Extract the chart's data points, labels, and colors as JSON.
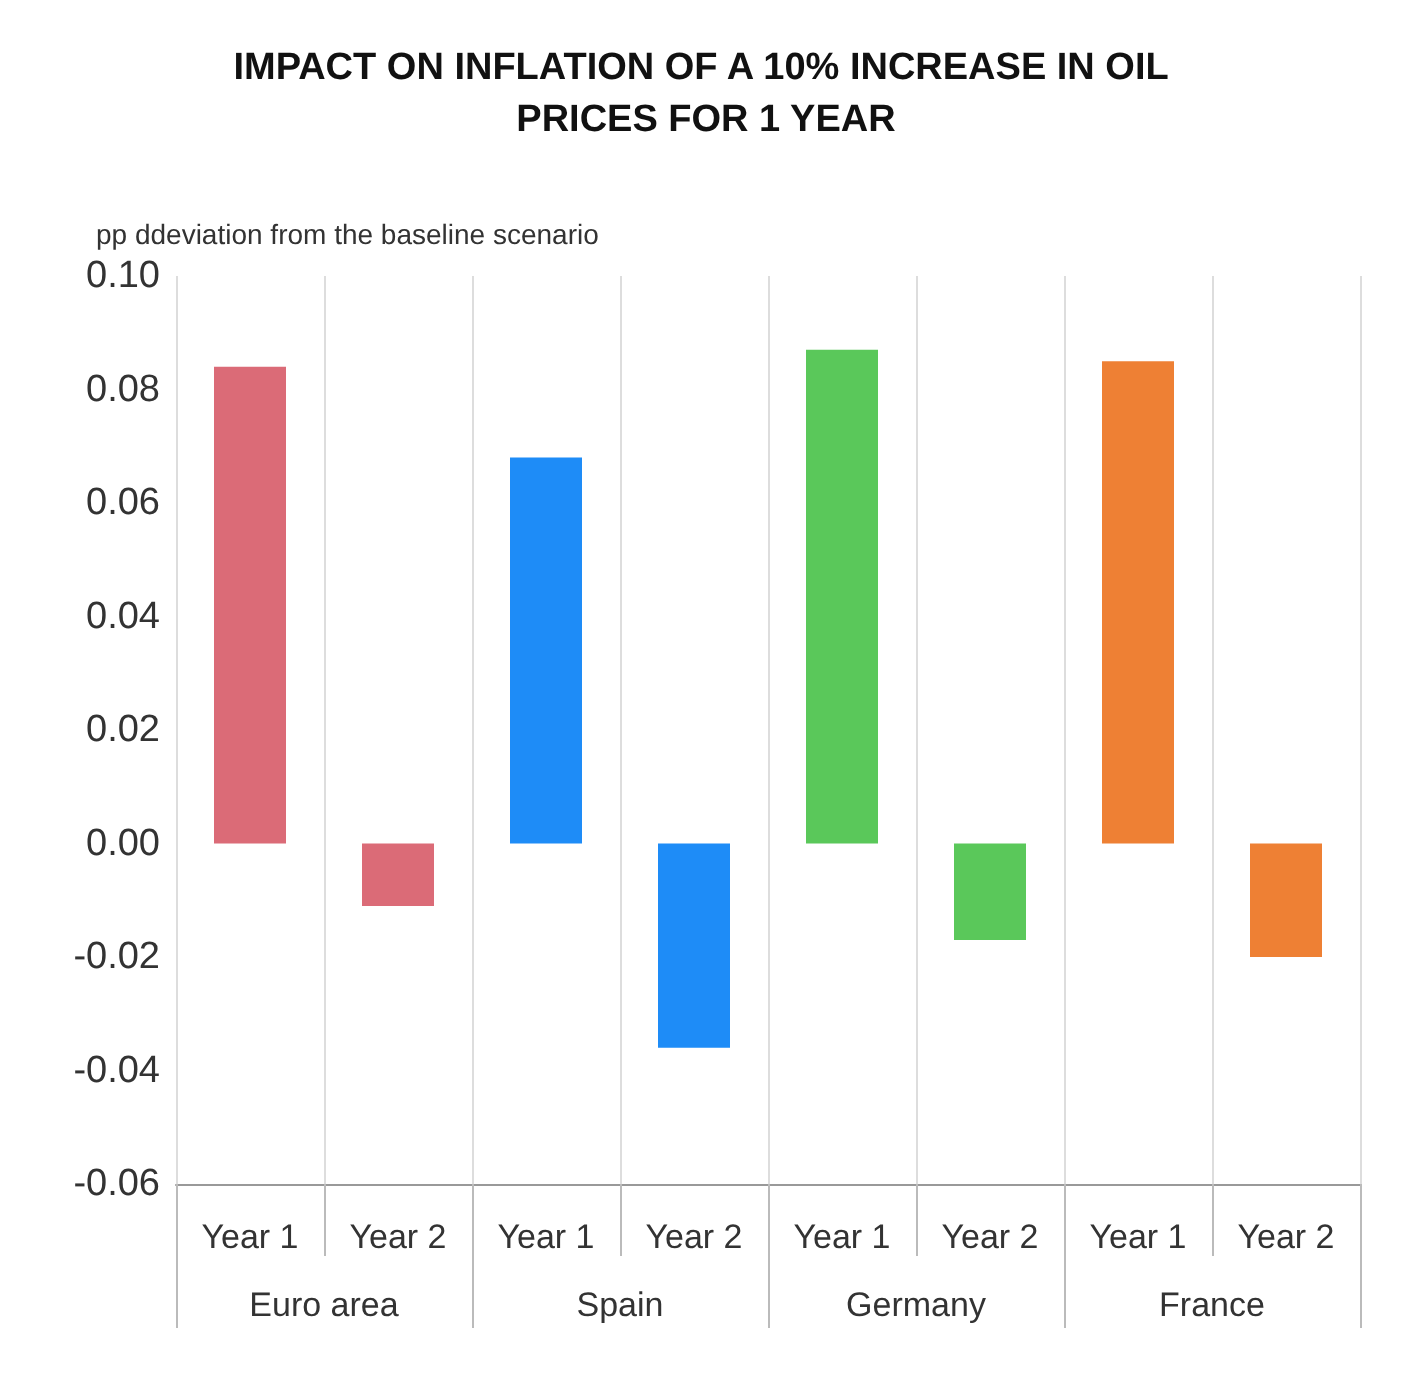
{
  "chart_data": {
    "type": "bar",
    "title": "IMPACT ON INFLATION OF A 10% INCREASE IN OIL PRICES FOR 1 YEAR",
    "ylabel": "pp ddeviation from the baseline scenario",
    "categories": [
      "Year 1",
      "Year 2",
      "Year 1",
      "Year 2",
      "Year 1",
      "Year 2",
      "Year 1",
      "Year 2"
    ],
    "series": [
      {
        "color": "#db6b77",
        "values": [
          0.084,
          -0.011,
          null,
          null,
          null,
          null,
          null,
          null
        ]
      },
      {
        "color": "#1e8cf7",
        "values": [
          null,
          null,
          0.068,
          -0.036,
          null,
          null,
          null,
          null
        ]
      },
      {
        "color": "#5ac85a",
        "values": [
          null,
          null,
          null,
          null,
          0.087,
          -0.017,
          null,
          null
        ]
      },
      {
        "color": "#ee8034",
        "values": [
          null,
          null,
          null,
          null,
          null,
          null,
          0.085,
          -0.02
        ]
      }
    ],
    "ylim": [
      -0.06,
      0.1
    ],
    "yticks": [
      {
        "value": -0.06,
        "label": "-0.06"
      },
      {
        "value": -0.04,
        "label": "-0.04"
      },
      {
        "value": -0.02,
        "label": "-0.02"
      },
      {
        "value": 0,
        "label": "0.00"
      },
      {
        "value": 0.02,
        "label": "0.02"
      },
      {
        "value": 0.04,
        "label": "0.04"
      },
      {
        "value": 0.06,
        "label": "0.06"
      },
      {
        "value": 0.08,
        "label": "0.08"
      },
      {
        "value": 0.1,
        "label": "0.10"
      }
    ],
    "annotations": [
      "Euro area",
      "Spain",
      "Germany",
      "France"
    ],
    "grid": "x"
  }
}
